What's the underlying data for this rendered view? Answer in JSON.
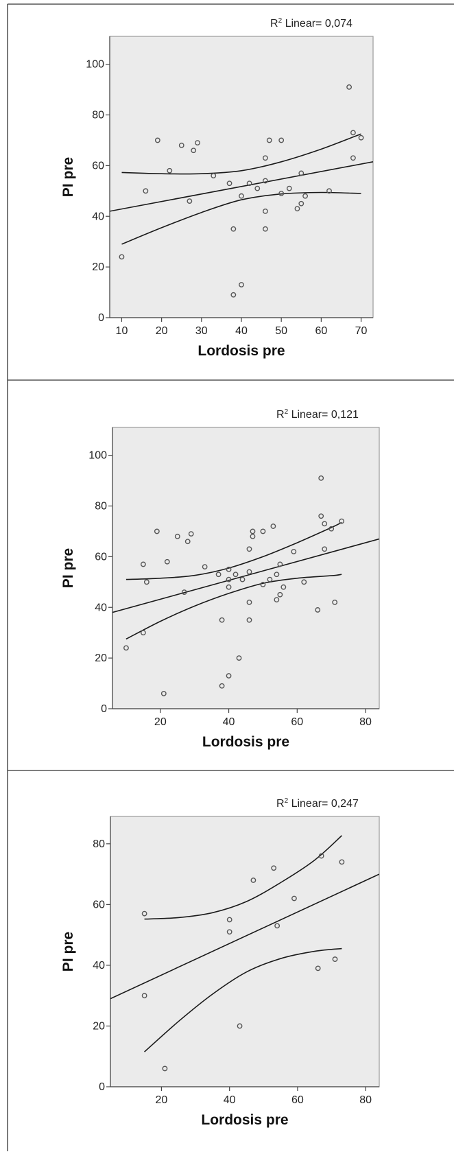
{
  "chart_data": [
    {
      "type": "scatter",
      "annotation": {
        "label": "Linear= 0,074"
      },
      "xlabel": "Lordosis pre",
      "ylabel": "PI pre",
      "xlim": [
        7,
        73
      ],
      "ylim": [
        0,
        111
      ],
      "xticks": [
        10,
        20,
        30,
        40,
        50,
        60,
        70
      ],
      "yticks": [
        0,
        20,
        40,
        60,
        80,
        100
      ],
      "grid": false,
      "points": [
        {
          "x": 10,
          "y": 24
        },
        {
          "x": 16,
          "y": 50
        },
        {
          "x": 19,
          "y": 70
        },
        {
          "x": 22,
          "y": 58
        },
        {
          "x": 25,
          "y": 68
        },
        {
          "x": 27,
          "y": 46
        },
        {
          "x": 28,
          "y": 66
        },
        {
          "x": 29,
          "y": 69
        },
        {
          "x": 33,
          "y": 56
        },
        {
          "x": 37,
          "y": 53
        },
        {
          "x": 38,
          "y": 35
        },
        {
          "x": 38,
          "y": 9
        },
        {
          "x": 40,
          "y": 48
        },
        {
          "x": 40,
          "y": 13
        },
        {
          "x": 42,
          "y": 53
        },
        {
          "x": 44,
          "y": 51
        },
        {
          "x": 46,
          "y": 63
        },
        {
          "x": 46,
          "y": 54
        },
        {
          "x": 46,
          "y": 42
        },
        {
          "x": 46,
          "y": 35
        },
        {
          "x": 47,
          "y": 70
        },
        {
          "x": 50,
          "y": 70
        },
        {
          "x": 50,
          "y": 49
        },
        {
          "x": 52,
          "y": 51
        },
        {
          "x": 54,
          "y": 43
        },
        {
          "x": 55,
          "y": 57
        },
        {
          "x": 55,
          "y": 45
        },
        {
          "x": 56,
          "y": 48
        },
        {
          "x": 62,
          "y": 50
        },
        {
          "x": 67,
          "y": 91
        },
        {
          "x": 68,
          "y": 73
        },
        {
          "x": 68,
          "y": 63
        },
        {
          "x": 70,
          "y": 71
        }
      ],
      "fit_line": [
        {
          "x": 7,
          "y": 42
        },
        {
          "x": 73,
          "y": 61.5
        }
      ],
      "ci_upper": [
        {
          "x": 10,
          "y": 57.3
        },
        {
          "x": 20,
          "y": 56.8
        },
        {
          "x": 30,
          "y": 56.8
        },
        {
          "x": 40,
          "y": 58
        },
        {
          "x": 50,
          "y": 61.5
        },
        {
          "x": 60,
          "y": 66.5
        },
        {
          "x": 70,
          "y": 72.5
        }
      ],
      "ci_lower": [
        {
          "x": 10,
          "y": 29
        },
        {
          "x": 20,
          "y": 35.5
        },
        {
          "x": 30,
          "y": 41.5
        },
        {
          "x": 40,
          "y": 46.5
        },
        {
          "x": 50,
          "y": 48.8
        },
        {
          "x": 60,
          "y": 49.4
        },
        {
          "x": 70,
          "y": 49
        }
      ]
    },
    {
      "type": "scatter",
      "annotation": {
        "label": "Linear= 0,121"
      },
      "xlabel": "Lordosis pre",
      "ylabel": "PI pre",
      "xlim": [
        6,
        84
      ],
      "ylim": [
        0,
        111
      ],
      "xticks": [
        20,
        40,
        60,
        80
      ],
      "yticks": [
        0,
        20,
        40,
        60,
        80,
        100
      ],
      "grid": false,
      "points": [
        {
          "x": 10,
          "y": 24
        },
        {
          "x": 15,
          "y": 57
        },
        {
          "x": 15,
          "y": 30
        },
        {
          "x": 16,
          "y": 50
        },
        {
          "x": 19,
          "y": 70
        },
        {
          "x": 21,
          "y": 6
        },
        {
          "x": 22,
          "y": 58
        },
        {
          "x": 25,
          "y": 68
        },
        {
          "x": 27,
          "y": 46
        },
        {
          "x": 28,
          "y": 66
        },
        {
          "x": 29,
          "y": 69
        },
        {
          "x": 33,
          "y": 56
        },
        {
          "x": 37,
          "y": 53
        },
        {
          "x": 38,
          "y": 35
        },
        {
          "x": 38,
          "y": 9
        },
        {
          "x": 40,
          "y": 55
        },
        {
          "x": 40,
          "y": 51
        },
        {
          "x": 40,
          "y": 48
        },
        {
          "x": 40,
          "y": 13
        },
        {
          "x": 42,
          "y": 53
        },
        {
          "x": 43,
          "y": 20
        },
        {
          "x": 44,
          "y": 51
        },
        {
          "x": 46,
          "y": 63
        },
        {
          "x": 46,
          "y": 54
        },
        {
          "x": 46,
          "y": 42
        },
        {
          "x": 46,
          "y": 35
        },
        {
          "x": 47,
          "y": 70
        },
        {
          "x": 47,
          "y": 68
        },
        {
          "x": 50,
          "y": 70
        },
        {
          "x": 50,
          "y": 49
        },
        {
          "x": 52,
          "y": 51
        },
        {
          "x": 53,
          "y": 72
        },
        {
          "x": 54,
          "y": 53
        },
        {
          "x": 54,
          "y": 43
        },
        {
          "x": 55,
          "y": 57
        },
        {
          "x": 55,
          "y": 45
        },
        {
          "x": 56,
          "y": 48
        },
        {
          "x": 59,
          "y": 62
        },
        {
          "x": 62,
          "y": 50
        },
        {
          "x": 66,
          "y": 39
        },
        {
          "x": 67,
          "y": 91
        },
        {
          "x": 67,
          "y": 76
        },
        {
          "x": 68,
          "y": 73
        },
        {
          "x": 68,
          "y": 63
        },
        {
          "x": 70,
          "y": 71
        },
        {
          "x": 71,
          "y": 42
        },
        {
          "x": 73,
          "y": 74
        }
      ],
      "fit_line": [
        {
          "x": 6,
          "y": 38
        },
        {
          "x": 84,
          "y": 67
        }
      ],
      "ci_upper": [
        {
          "x": 10,
          "y": 51
        },
        {
          "x": 20,
          "y": 51.5
        },
        {
          "x": 30,
          "y": 52.6
        },
        {
          "x": 40,
          "y": 55.5
        },
        {
          "x": 50,
          "y": 60
        },
        {
          "x": 60,
          "y": 65.5
        },
        {
          "x": 70,
          "y": 71.5
        },
        {
          "x": 73,
          "y": 73.5
        }
      ],
      "ci_lower": [
        {
          "x": 10,
          "y": 27.5
        },
        {
          "x": 20,
          "y": 34.5
        },
        {
          "x": 30,
          "y": 40.5
        },
        {
          "x": 40,
          "y": 45.5
        },
        {
          "x": 50,
          "y": 49.5
        },
        {
          "x": 60,
          "y": 51.5
        },
        {
          "x": 70,
          "y": 52.5
        },
        {
          "x": 73,
          "y": 53
        }
      ]
    },
    {
      "type": "scatter",
      "annotation": {
        "label": "Linear= 0,247"
      },
      "xlabel": "Lordosis pre",
      "ylabel": "PI pre",
      "xlim": [
        5,
        84
      ],
      "ylim": [
        0,
        89
      ],
      "xticks": [
        20,
        40,
        60,
        80
      ],
      "yticks": [
        0,
        20,
        40,
        60,
        80
      ],
      "grid": false,
      "points": [
        {
          "x": 15,
          "y": 57
        },
        {
          "x": 15,
          "y": 30
        },
        {
          "x": 21,
          "y": 6
        },
        {
          "x": 40,
          "y": 55
        },
        {
          "x": 40,
          "y": 51
        },
        {
          "x": 43,
          "y": 20
        },
        {
          "x": 47,
          "y": 68
        },
        {
          "x": 53,
          "y": 72
        },
        {
          "x": 54,
          "y": 53
        },
        {
          "x": 59,
          "y": 62
        },
        {
          "x": 66,
          "y": 39
        },
        {
          "x": 67,
          "y": 76
        },
        {
          "x": 71,
          "y": 42
        },
        {
          "x": 73,
          "y": 74
        }
      ],
      "fit_line": [
        {
          "x": 5,
          "y": 29
        },
        {
          "x": 84,
          "y": 70
        }
      ],
      "ci_upper": [
        {
          "x": 15,
          "y": 55.2
        },
        {
          "x": 25,
          "y": 55.7
        },
        {
          "x": 35,
          "y": 57.3
        },
        {
          "x": 45,
          "y": 61
        },
        {
          "x": 55,
          "y": 67.2
        },
        {
          "x": 65,
          "y": 74.6
        },
        {
          "x": 73,
          "y": 82.7
        }
      ],
      "ci_lower": [
        {
          "x": 15,
          "y": 11.5
        },
        {
          "x": 25,
          "y": 21.5
        },
        {
          "x": 35,
          "y": 30.5
        },
        {
          "x": 45,
          "y": 37.8
        },
        {
          "x": 55,
          "y": 42.2
        },
        {
          "x": 65,
          "y": 44.6
        },
        {
          "x": 73,
          "y": 45.5
        }
      ]
    }
  ],
  "colors": {
    "plot_bg": "#ebebeb",
    "frame": "#9a9a9a",
    "line": "#1a1a1a",
    "marker": "#555555",
    "panel_border": "#333333"
  }
}
